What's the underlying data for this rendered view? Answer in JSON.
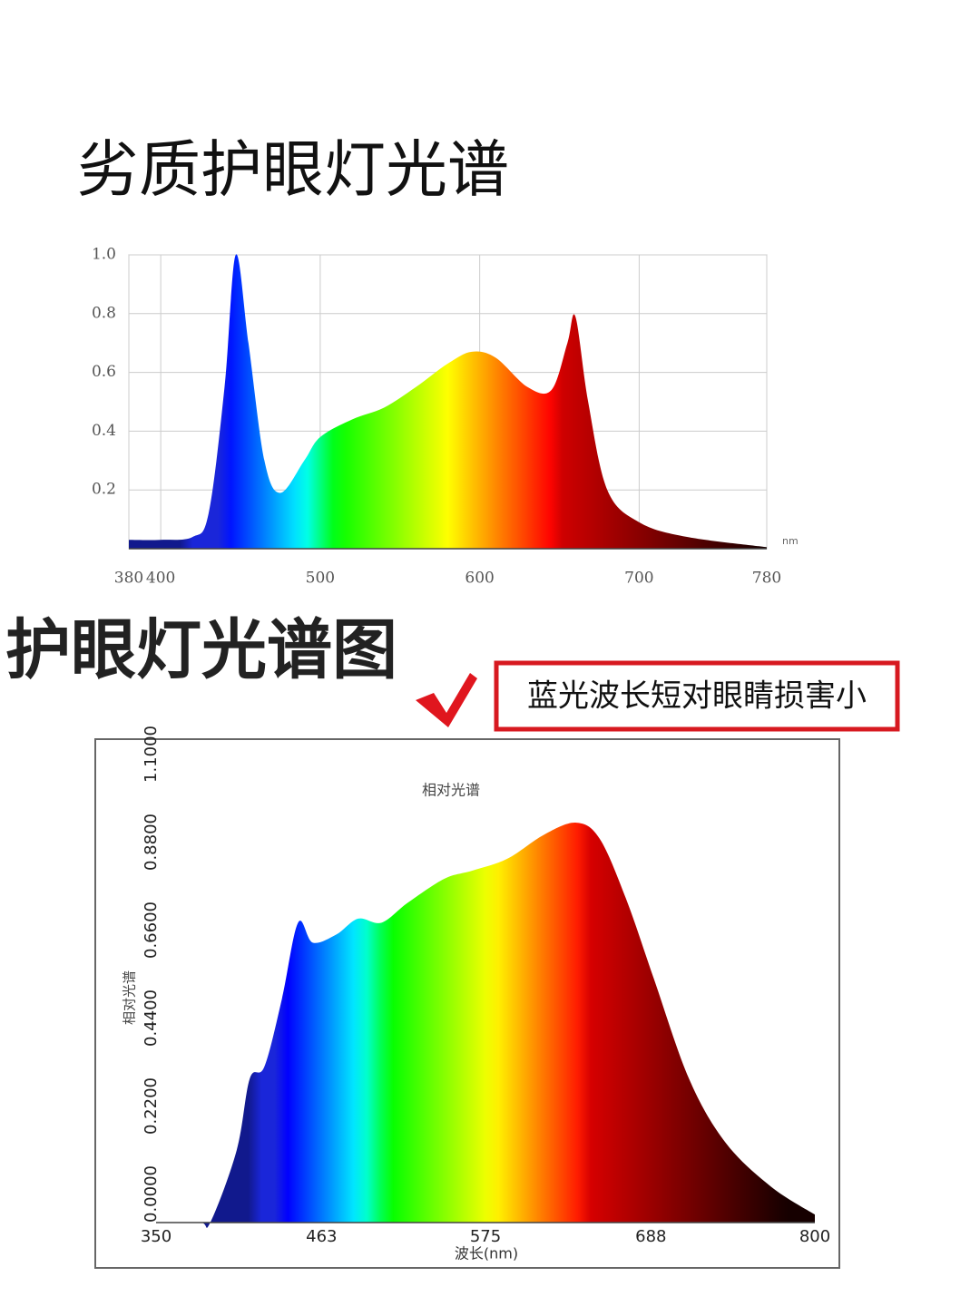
{
  "chart_data": [
    {
      "type": "area",
      "title": "劣质护眼灯光谱",
      "xlabel": "nm",
      "x": [
        380,
        400,
        420,
        430,
        440,
        447,
        455,
        465,
        475,
        490,
        500,
        520,
        540,
        560,
        580,
        595,
        610,
        630,
        645,
        655,
        660,
        668,
        680,
        700,
        730,
        780
      ],
      "values": [
        0.03,
        0.03,
        0.04,
        0.12,
        0.55,
        1.0,
        0.7,
        0.3,
        0.19,
        0.3,
        0.38,
        0.44,
        0.48,
        0.55,
        0.63,
        0.67,
        0.65,
        0.55,
        0.54,
        0.7,
        0.79,
        0.5,
        0.2,
        0.09,
        0.04,
        0.005
      ],
      "xlim": [
        380,
        780
      ],
      "xticks": [
        380,
        400,
        500,
        600,
        700,
        780
      ],
      "ylim": [
        0,
        1
      ],
      "yticks": [
        0.2,
        0.4,
        0.6,
        0.8,
        {
          "value": 1,
          "label": "1.0"
        }
      ],
      "grid": true
    },
    {
      "type": "area",
      "title": "护眼灯光谱图",
      "subtitle": "相对光谱",
      "ylabel": "相对光谱",
      "xlabel": "波长(nm)",
      "annotation": "蓝光波长短对眼睛损害小",
      "x": [
        350,
        380,
        387,
        405,
        414,
        424,
        436,
        447,
        457,
        473,
        488,
        504,
        522,
        547,
        566,
        590,
        615,
        637,
        653,
        671,
        690,
        714,
        739,
        770,
        800
      ],
      "values": [
        0,
        0,
        0,
        0.18,
        0.36,
        0.39,
        0.56,
        0.75,
        0.7,
        0.72,
        0.76,
        0.75,
        0.8,
        0.86,
        0.88,
        0.91,
        0.97,
        1.0,
        0.96,
        0.81,
        0.61,
        0.36,
        0.2,
        0.09,
        0.02
      ],
      "xlim": [
        350,
        800
      ],
      "xticks": [
        350,
        463,
        575,
        688,
        800
      ],
      "ylim": [
        0,
        1.1
      ],
      "yticks": [
        {
          "value": 0,
          "label": "0.0000"
        },
        {
          "value": 0.22,
          "label": "0.2200"
        },
        {
          "value": 0.44,
          "label": "0.4400"
        },
        {
          "value": 0.66,
          "label": "0.6600"
        },
        {
          "value": 0.88,
          "label": "0.8800"
        },
        {
          "value": 1.1,
          "label": "1.1000"
        }
      ],
      "grid": false
    }
  ]
}
